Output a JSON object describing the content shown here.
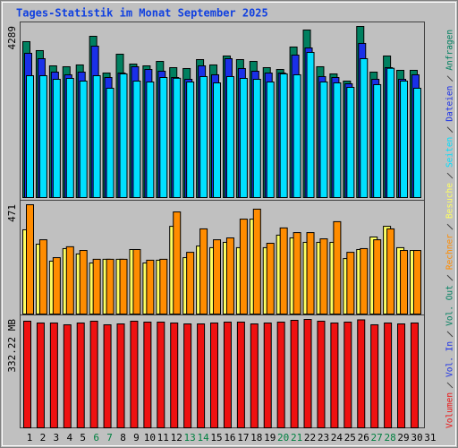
{
  "chart_data": [
    {
      "type": "bar",
      "title": "Tages-Statistik im Monat September 2025",
      "categories": [
        1,
        2,
        3,
        4,
        5,
        6,
        7,
        8,
        9,
        10,
        11,
        12,
        13,
        14,
        15,
        16,
        17,
        18,
        19,
        20,
        21,
        22,
        23,
        24,
        25,
        26,
        27,
        28,
        29,
        30,
        31
      ],
      "category_colors": [
        "#000000",
        "#000000",
        "#000000",
        "#000000",
        "#000000",
        "#008040",
        "#008040",
        "#000000",
        "#000000",
        "#000000",
        "#000000",
        "#000000",
        "#008040",
        "#008040",
        "#000000",
        "#000000",
        "#000000",
        "#000000",
        "#000000",
        "#008040",
        "#008040",
        "#000000",
        "#000000",
        "#000000",
        "#000000",
        "#000000",
        "#008040",
        "#008040",
        "#000000",
        "#000000",
        "#000000"
      ],
      "ylim": [
        0,
        4289
      ],
      "yticks": [
        4289
      ],
      "series": [
        {
          "name": "Anfragen",
          "color": "#008060",
          "values": [
            3908,
            3683,
            3301,
            3279,
            3324,
            4042,
            3121,
            3593,
            3346,
            3301,
            3413,
            3256,
            3234,
            3458,
            3324,
            3548,
            3458,
            3413,
            3256,
            3211,
            3773,
            4199,
            3279,
            3099,
            2919,
            4289,
            3144,
            3548,
            3189,
            3189,
            null
          ]
        },
        {
          "name": "Dateien",
          "color": "#1a30e8",
          "values": [
            3616,
            3481,
            3144,
            3077,
            3144,
            3795,
            3009,
            3121,
            3279,
            3211,
            3166,
            3009,
            2964,
            3301,
            3077,
            3481,
            3234,
            3166,
            3121,
            3121,
            3571,
            3750,
            3032,
            3009,
            2852,
            3863,
            2964,
            3256,
            2964,
            3077,
            null
          ]
        },
        {
          "name": "Seiten",
          "color": "#00e0ff",
          "values": [
            3054,
            3054,
            2964,
            2987,
            2919,
            3054,
            2740,
            3100,
            2919,
            2897,
            3009,
            2990,
            2897,
            3032,
            2874,
            3032,
            2987,
            2964,
            2897,
            3100,
            3077,
            3638,
            2897,
            2874,
            2762,
            3481,
            2830,
            3240,
            2919,
            2740,
            null
          ]
        }
      ]
    },
    {
      "type": "bar",
      "ylim": [
        0,
        471
      ],
      "yticks": [
        471
      ],
      "series": [
        {
          "name": "Besuche",
          "color": "#ffff60",
          "values": [
            363,
            301,
            228,
            282,
            259,
            220,
            236,
            236,
            278,
            220,
            232,
            378,
            243,
            293,
            286,
            309,
            286,
            409,
            286,
            340,
            328,
            309,
            309,
            309,
            239,
            278,
            332,
            378,
            286,
            274,
            null
          ]
        },
        {
          "name": "Rechner",
          "color": "#ff8c00",
          "values": [
            471,
            320,
            243,
            290,
            274,
            236,
            236,
            236,
            278,
            232,
            236,
            440,
            266,
            367,
            320,
            328,
            409,
            452,
            305,
            371,
            351,
            351,
            324,
            398,
            266,
            282,
            320,
            367,
            274,
            274,
            null
          ]
        }
      ]
    },
    {
      "type": "bar",
      "ylim": [
        0,
        332.22
      ],
      "yticks": [
        {
          "value": 332.22,
          "label": "332.22 MB"
        }
      ],
      "series": [
        {
          "name": "Vol. Out",
          "color": "#008060"
        },
        {
          "name": "Vol. In",
          "color": "#1a30e8"
        },
        {
          "name": "Volumen",
          "color": "#ee1111",
          "values": [
            326.8,
            321.3,
            321.3,
            315.8,
            321.3,
            326.8,
            315.8,
            318.5,
            326.8,
            324.0,
            324.0,
            321.3,
            318.5,
            318.5,
            321.3,
            324.0,
            324.0,
            318.5,
            321.3,
            324.0,
            329.5,
            332.22,
            326.8,
            321.3,
            324.0,
            330.9,
            315.8,
            321.3,
            318.5,
            321.3,
            null
          ]
        }
      ]
    }
  ]
}
